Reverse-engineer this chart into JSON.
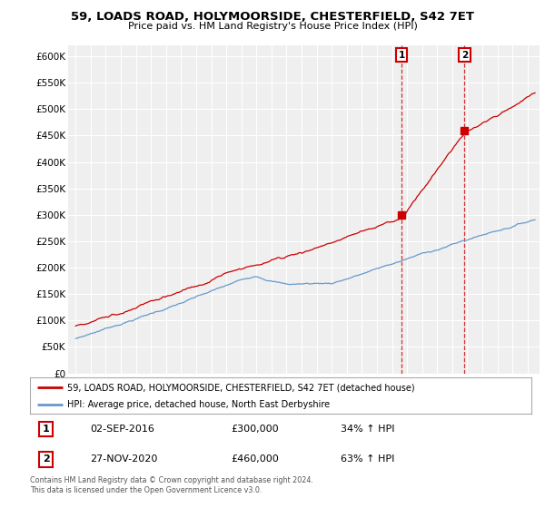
{
  "title1": "59, LOADS ROAD, HOLYMOORSIDE, CHESTERFIELD, S42 7ET",
  "title2": "Price paid vs. HM Land Registry's House Price Index (HPI)",
  "red_label": "59, LOADS ROAD, HOLYMOORSIDE, CHESTERFIELD, S42 7ET (detached house)",
  "blue_label": "HPI: Average price, detached house, North East Derbyshire",
  "sale1_date": "02-SEP-2016",
  "sale1_price": 300000,
  "sale1_pct": "34%",
  "sale2_date": "27-NOV-2020",
  "sale2_price": 460000,
  "sale2_pct": "63%",
  "footer": "Contains HM Land Registry data © Crown copyright and database right 2024.\nThis data is licensed under the Open Government Licence v3.0.",
  "red_color": "#cc0000",
  "blue_color": "#6699cc",
  "ylim": [
    0,
    620000
  ],
  "yticks": [
    0,
    50000,
    100000,
    150000,
    200000,
    250000,
    300000,
    350000,
    400000,
    450000,
    500000,
    550000,
    600000
  ],
  "background": "#ffffff",
  "plot_bg": "#efefef"
}
